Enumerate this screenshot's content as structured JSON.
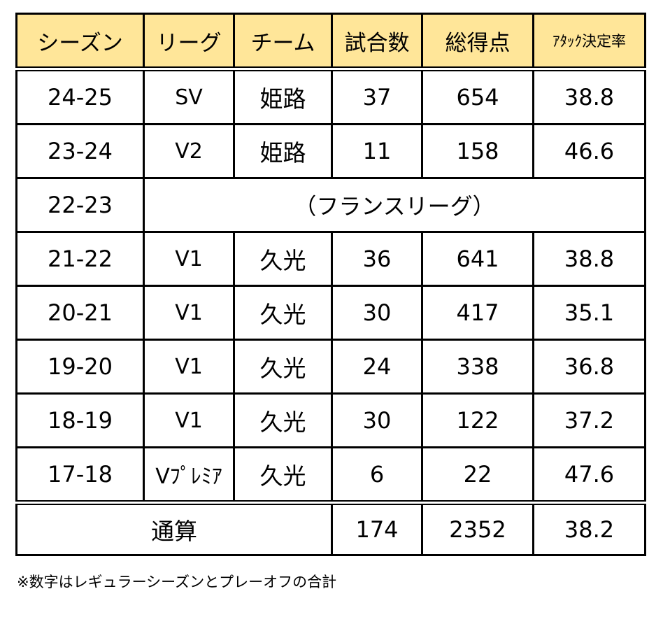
{
  "header": {
    "season": "シーズン",
    "league": "リーグ",
    "team": "チーム",
    "games": "試合数",
    "points": "総得点",
    "attack": "ｱﾀｯｸ決定率"
  },
  "rows": [
    {
      "season": "24-25",
      "league": "SV",
      "team": "姫路",
      "games": "37",
      "points": "654",
      "attack": "38.8"
    },
    {
      "season": "23-24",
      "league": "V2",
      "team": "姫路",
      "games": "11",
      "points": "158",
      "attack": "46.6"
    },
    {
      "season": "22-23",
      "note": "（フランスリーグ）"
    },
    {
      "season": "21-22",
      "league": "V1",
      "team": "久光",
      "games": "36",
      "points": "641",
      "attack": "38.8"
    },
    {
      "season": "20-21",
      "league": "V1",
      "team": "久光",
      "games": "30",
      "points": "417",
      "attack": "35.1"
    },
    {
      "season": "19-20",
      "league": "V1",
      "team": "久光",
      "games": "24",
      "points": "338",
      "attack": "36.8"
    },
    {
      "season": "18-19",
      "league": "V1",
      "team": "久光",
      "games": "30",
      "points": "122",
      "attack": "37.2"
    },
    {
      "season": "17-18",
      "league": "Vﾌﾟﾚﾐｱ",
      "team": "久光",
      "games": "6",
      "points": "22",
      "attack": "47.6"
    }
  ],
  "total": {
    "label": "通算",
    "games": "174",
    "points": "2352",
    "attack": "38.2"
  },
  "footnote": "※数字はレギュラーシーズンとプレーオフの合計",
  "colors": {
    "header_bg": "#FFE699",
    "border": "#000000"
  }
}
